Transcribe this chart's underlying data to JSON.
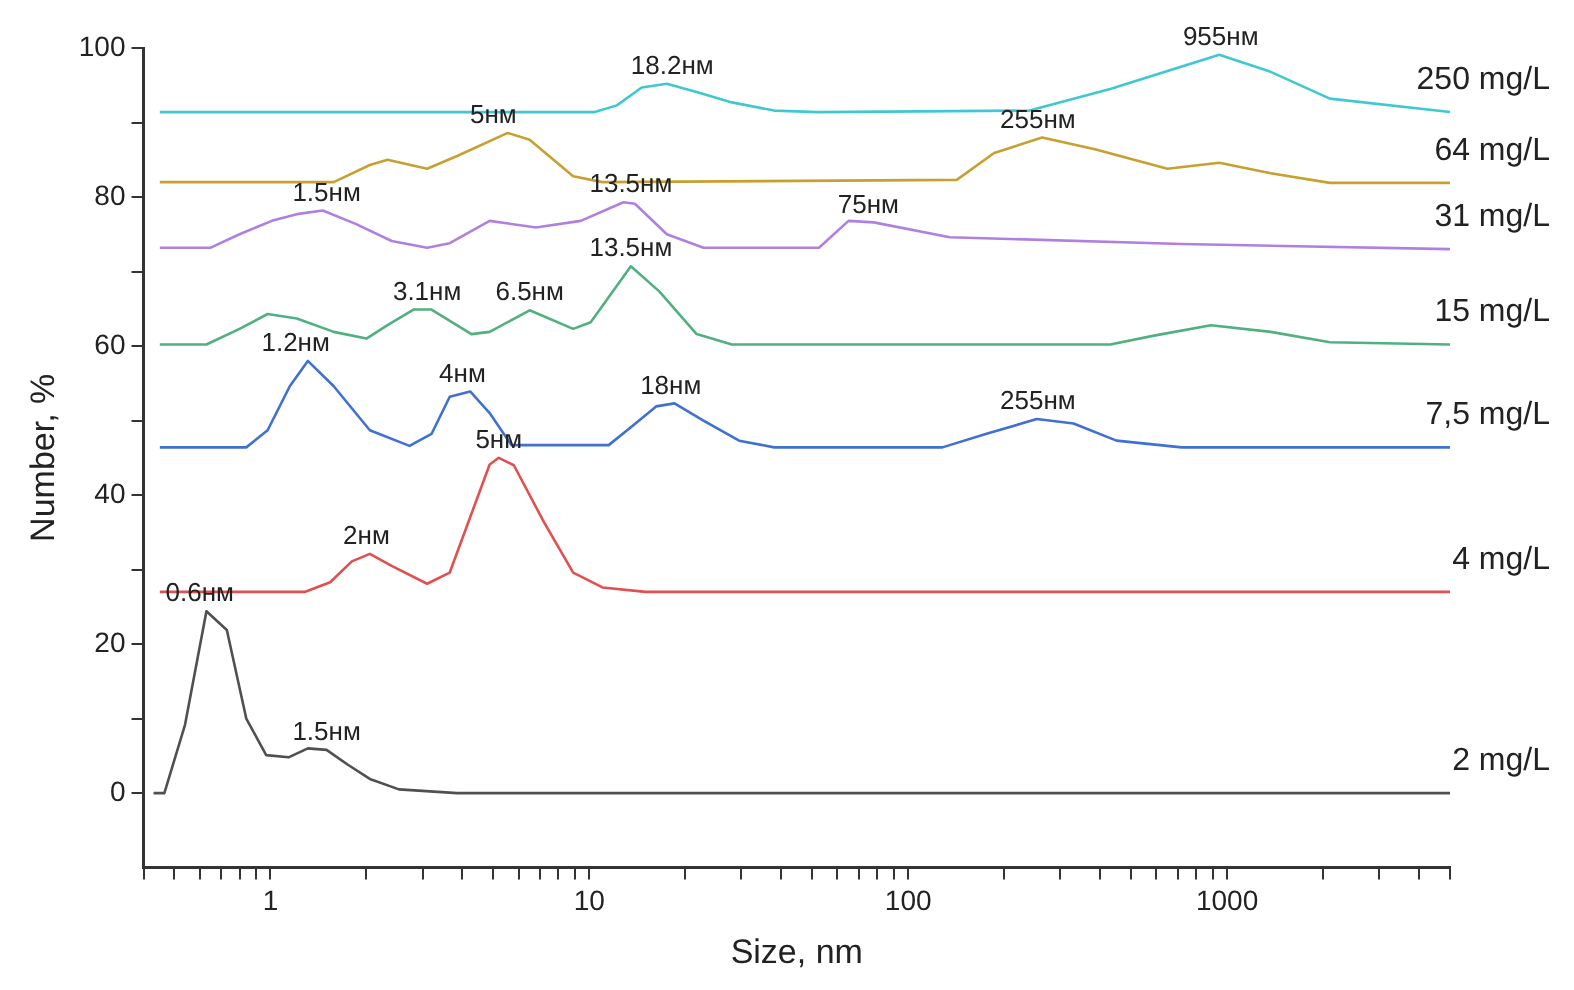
{
  "chart_data": {
    "type": "line",
    "xlabel": "Size, nm",
    "ylabel": "Number, %",
    "log": "x",
    "grid": false,
    "legend": false,
    "marker": "none",
    "line_style": "solid",
    "xlim": [
      0.4,
      5000
    ],
    "xticks": [
      {
        "value": 0.4,
        "label": null
      },
      {
        "value": 0.5,
        "label": null
      },
      {
        "value": 0.6,
        "label": null
      },
      {
        "value": 0.7,
        "label": null
      },
      {
        "value": 0.8,
        "label": null
      },
      {
        "value": 0.9,
        "label": null
      },
      1,
      {
        "value": 2,
        "label": null
      },
      {
        "value": 3,
        "label": null
      },
      {
        "value": 4,
        "label": null
      },
      {
        "value": 5,
        "label": null
      },
      {
        "value": 6,
        "label": null
      },
      {
        "value": 7,
        "label": null
      },
      {
        "value": 8,
        "label": null
      },
      {
        "value": 9,
        "label": null
      },
      10,
      {
        "value": 20,
        "label": null
      },
      {
        "value": 30,
        "label": null
      },
      {
        "value": 40,
        "label": null
      },
      {
        "value": 50,
        "label": null
      },
      {
        "value": 60,
        "label": null
      },
      {
        "value": 70,
        "label": null
      },
      {
        "value": 80,
        "label": null
      },
      {
        "value": 90,
        "label": null
      },
      100,
      {
        "value": 200,
        "label": null
      },
      {
        "value": 300,
        "label": null
      },
      {
        "value": 400,
        "label": null
      },
      {
        "value": 500,
        "label": null
      },
      {
        "value": 600,
        "label": null
      },
      {
        "value": 700,
        "label": null
      },
      {
        "value": 800,
        "label": null
      },
      {
        "value": 900,
        "label": null
      },
      1000,
      {
        "value": 2000,
        "label": null
      },
      {
        "value": 3000,
        "label": null
      },
      {
        "value": 4000,
        "label": null
      },
      {
        "value": 5000,
        "label": null
      }
    ],
    "ylim": [
      -10,
      100
    ],
    "yticks": [
      0,
      {
        "value": 10,
        "label": null
      },
      20,
      {
        "value": 30,
        "label": null
      },
      40,
      {
        "value": 50,
        "label": null
      },
      60,
      {
        "value": 70,
        "label": null
      },
      80,
      {
        "value": 90,
        "label": null
      },
      100
    ],
    "series": [
      {
        "name": "2 mg/L",
        "color": "#505050",
        "x": [
          0.43,
          0.465,
          0.54,
          0.63,
          0.73,
          0.84,
          0.97,
          1.14,
          1.31,
          1.5,
          1.75,
          2.05,
          2.53,
          3.85,
          5000
        ],
        "values": [
          0,
          0,
          9.2,
          24.4,
          21.9,
          10,
          5.1,
          4.8,
          6,
          5.8,
          3.8,
          1.9,
          0.5,
          0,
          0
        ]
      },
      {
        "name": "4 mg/L",
        "color": "#e05050",
        "x": [
          0.45,
          1.28,
          1.54,
          1.8,
          2.05,
          2.4,
          3.1,
          3.65,
          4.87,
          5.2,
          5.8,
          7.2,
          8.9,
          11,
          15,
          5000
        ],
        "values": [
          27,
          27,
          28.3,
          31.1,
          32.1,
          30.5,
          28.1,
          29.6,
          44.1,
          45,
          44,
          36.4,
          29.6,
          27.6,
          27,
          27
        ]
      },
      {
        "name": "7,5 mg/L",
        "color": "#4070d0",
        "x": [
          0.45,
          0.84,
          0.98,
          1.15,
          1.31,
          1.58,
          2.05,
          2.73,
          3.2,
          3.65,
          4.23,
          4.87,
          5.7,
          11.5,
          13.5,
          16.2,
          18.5,
          22.8,
          29.5,
          38,
          128,
          175,
          253,
          330,
          450,
          720,
          5000
        ],
        "values": [
          46.4,
          46.4,
          48.7,
          54.6,
          58,
          54.6,
          48.7,
          46.6,
          48.2,
          53.2,
          53.9,
          51,
          46.7,
          46.7,
          49.1,
          51.9,
          52.3,
          50,
          47.3,
          46.4,
          46.4,
          48.2,
          50.2,
          49.6,
          47.3,
          46.4,
          46.4
        ]
      },
      {
        "name": "15 mg/L",
        "color": "#50b080",
        "x": [
          0.45,
          0.63,
          0.8,
          0.98,
          1.21,
          1.58,
          2,
          2.33,
          2.81,
          3.2,
          4.27,
          4.87,
          6.5,
          8.9,
          10.1,
          13.5,
          16.6,
          21.7,
          28,
          430,
          590,
          890,
          1370,
          2100,
          5000
        ],
        "values": [
          60.2,
          60.2,
          62.3,
          64.3,
          63.7,
          61.9,
          61,
          62.8,
          64.9,
          64.9,
          61.6,
          61.9,
          64.8,
          62.3,
          63.2,
          70.7,
          67.3,
          61.6,
          60.2,
          60.2,
          61.4,
          62.8,
          61.9,
          60.5,
          60.2
        ]
      },
      {
        "name": "31 mg/L",
        "color": "#b080e0",
        "x": [
          0.45,
          0.65,
          0.8,
          1.01,
          1.21,
          1.46,
          1.85,
          2.4,
          3.1,
          3.65,
          4.87,
          6.8,
          9.4,
          12.8,
          13.9,
          17.5,
          22.8,
          52.5,
          65,
          78,
          135,
          720,
          5000
        ],
        "values": [
          73.2,
          73.2,
          75,
          76.8,
          77.7,
          78.2,
          76.4,
          74.1,
          73.2,
          73.8,
          76.8,
          75.9,
          76.8,
          79.3,
          79.1,
          75,
          73.2,
          73.2,
          76.8,
          76.6,
          74.6,
          73.7,
          73
        ]
      },
      {
        "name": "64 mg/L",
        "color": "#c8a030",
        "x": [
          0.45,
          1.58,
          2.05,
          2.33,
          3.1,
          3.85,
          5.55,
          6.5,
          8.9,
          11,
          142,
          186,
          263,
          385,
          650,
          945,
          1370,
          2100,
          5000
        ],
        "values": [
          82,
          82,
          84.3,
          85,
          83.8,
          85.5,
          88.6,
          87.7,
          82.8,
          82,
          82.3,
          85.9,
          88,
          86.4,
          83.8,
          84.6,
          83.2,
          81.9,
          81.9
        ]
      },
      {
        "name": "250 mg/L",
        "color": "#40c8d0",
        "x": [
          0.45,
          10.4,
          12.2,
          14.6,
          17.5,
          21.7,
          28,
          38,
          52.5,
          240,
          430,
          945,
          1370,
          2100,
          5000
        ],
        "values": [
          91.4,
          91.4,
          92.3,
          94.7,
          95.2,
          94.1,
          92.7,
          91.6,
          91.4,
          91.6,
          94.5,
          99.1,
          96.8,
          93.2,
          91.4
        ]
      }
    ],
    "annotations": [
      {
        "text": "0.6нм",
        "x": 0.6,
        "y": 24.4
      },
      {
        "text": "1.5нм",
        "x": 1.5,
        "y": 5.8
      },
      {
        "text": "2нм",
        "x": 2,
        "y": 32.1
      },
      {
        "text": "5нм",
        "x": 5.2,
        "y": 45
      },
      {
        "text": "1.2нм",
        "x": 1.2,
        "y": 58
      },
      {
        "text": "4нм",
        "x": 4,
        "y": 53.9
      },
      {
        "text": "18нм",
        "x": 18,
        "y": 52.3
      },
      {
        "text": "255нм",
        "x": 255,
        "y": 50.2
      },
      {
        "text": "3.1нм",
        "x": 3.1,
        "y": 64.9
      },
      {
        "text": "6.5нм",
        "x": 6.5,
        "y": 64.8
      },
      {
        "text": "13.5нм",
        "x": 13.5,
        "y": 70.7
      },
      {
        "text": "1.5нм",
        "x": 1.5,
        "y": 78.2
      },
      {
        "text": "13.5нм",
        "x": 13.5,
        "y": 79.3
      },
      {
        "text": "75нм",
        "x": 75,
        "y": 76.6
      },
      {
        "text": "5нм",
        "x": 5,
        "y": 88.6
      },
      {
        "text": "255нм",
        "x": 255,
        "y": 88
      },
      {
        "text": "18.2нм",
        "x": 18.2,
        "y": 95.2
      },
      {
        "text": "955нм",
        "x": 955,
        "y": 99.1
      }
    ]
  }
}
